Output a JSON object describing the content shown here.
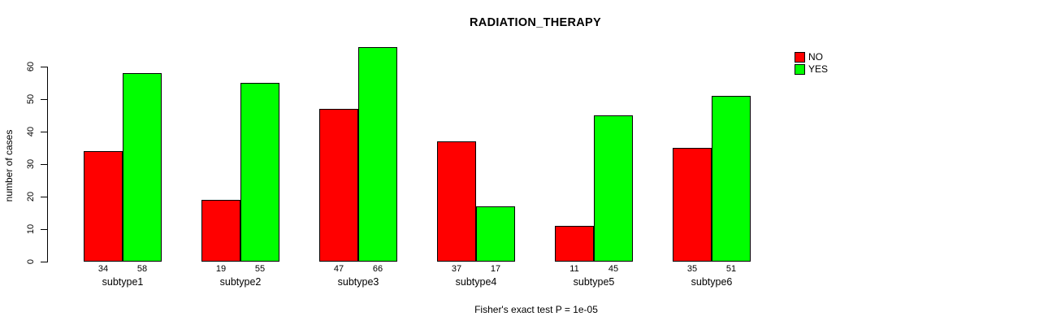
{
  "title": "RADIATION_THERAPY",
  "ylabel": "number of cases",
  "annotation": "Fisher's exact test P = 1e-05",
  "legend": {
    "items": [
      {
        "label": "NO",
        "color": "#FF0000"
      },
      {
        "label": "YES",
        "color": "#00FF00"
      }
    ]
  },
  "chart_data": {
    "type": "bar",
    "title": "RADIATION_THERAPY",
    "xlabel": "",
    "ylabel": "number of cases",
    "categories": [
      "subtype1",
      "subtype2",
      "subtype3",
      "subtype4",
      "subtype5",
      "subtype6"
    ],
    "series": [
      {
        "name": "NO",
        "color": "#FF0000",
        "values": [
          34,
          19,
          47,
          37,
          11,
          35
        ]
      },
      {
        "name": "YES",
        "color": "#00FF00",
        "values": [
          58,
          55,
          66,
          17,
          45,
          51
        ]
      }
    ],
    "bar_labels_shown": true,
    "ylim": [
      0,
      60
    ],
    "yticks": [
      0,
      10,
      20,
      30,
      40,
      50,
      60
    ],
    "grid": false,
    "legend_position": "top-right",
    "annotation": "Fisher's exact test P = 1e-05"
  }
}
